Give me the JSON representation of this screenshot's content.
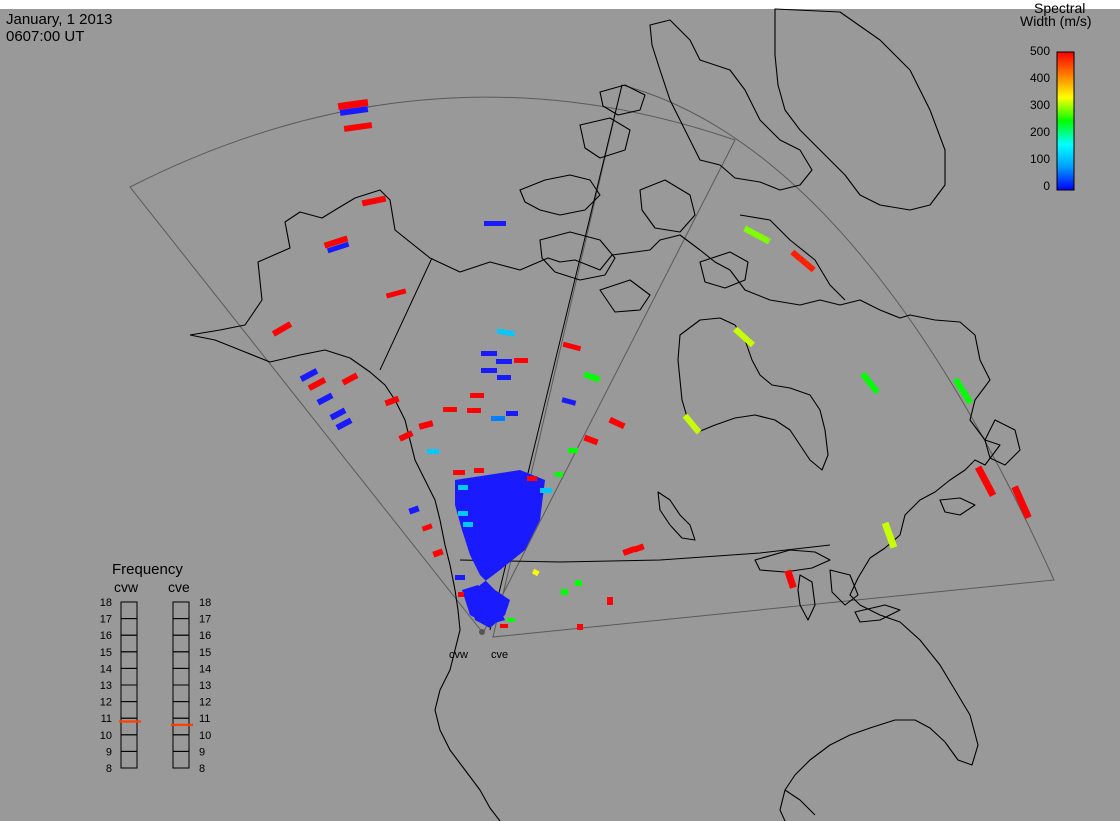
{
  "header": {
    "date": "January, 1 2013",
    "time": "0607:00 UT"
  },
  "colorbar": {
    "title_line1": "Spectral",
    "title_line2": "Width (m/s)",
    "ticks": [
      "500",
      "400",
      "300",
      "200",
      "100",
      "0"
    ],
    "stops": [
      "#0000ff",
      "#00a0ff",
      "#00ffff",
      "#00ff00",
      "#ffff00",
      "#ff8000",
      "#ff0000"
    ]
  },
  "frequency_panel": {
    "title": "Frequency",
    "left_label": "cvw",
    "right_label": "cve",
    "ticks": [
      "18",
      "17",
      "16",
      "15",
      "14",
      "13",
      "12",
      "11",
      "10",
      "9",
      "8"
    ],
    "cvw_marker_mhz": 10.8,
    "cve_marker_mhz": 10.6,
    "marker_color": "#ff4000"
  },
  "radars": {
    "west_label": "cvw",
    "east_label": "cve"
  },
  "colors": {
    "background": "#999999",
    "coastline": "#000000",
    "fov": "#555555"
  }
}
